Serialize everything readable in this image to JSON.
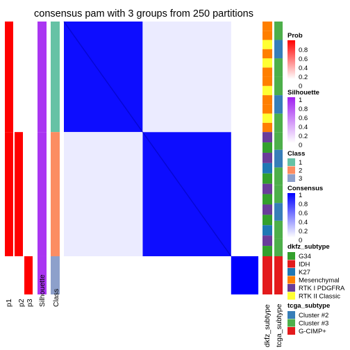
{
  "chart_data": {
    "type": "heatmap",
    "title": "consensus pam with 3 groups from 250 partitions",
    "column_labels": [
      "p1",
      "p2",
      "p3",
      "Silhouette",
      "Class"
    ],
    "annotation_labels": [
      "dkfz_subtype",
      "tcga_subtype"
    ],
    "groups": [
      {
        "class": "1",
        "n_fraction": 0.405,
        "p1": 1.0,
        "p2": 0.0,
        "p3": 0.0,
        "silhouette": 0.9
      },
      {
        "class": "2",
        "n_fraction": 0.455,
        "p1": 1.0,
        "p2": 1.0,
        "p3": 0.0,
        "silhouette": 0.9
      },
      {
        "class": "3",
        "n_fraction": 0.14,
        "p1": 0.0,
        "p2": 0.0,
        "p3": 1.0,
        "silhouette": 0.9
      }
    ],
    "consensus_blocks": [
      {
        "rows": [
          0,
          0.405
        ],
        "cols": [
          0,
          0.405
        ],
        "value": 0.95
      },
      {
        "rows": [
          0.405,
          0.86
        ],
        "cols": [
          0.405,
          0.86
        ],
        "value": 0.95
      },
      {
        "rows": [
          0.86,
          1.0
        ],
        "cols": [
          0.86,
          1.0
        ],
        "value": 1.0
      },
      {
        "rows": [
          0,
          0.405
        ],
        "cols": [
          0.405,
          0.86
        ],
        "value": 0.08
      },
      {
        "rows": [
          0.405,
          0.86
        ],
        "cols": [
          0,
          0.405
        ],
        "value": 0.08
      }
    ],
    "legends": {
      "prob": {
        "title": "Prob",
        "ticks": [
          "0.8",
          "0.6",
          "0.4",
          "0.2",
          "0"
        ]
      },
      "silhouette": {
        "title": "Silhouette",
        "ticks": [
          "1",
          "0.8",
          "0.6",
          "0.4",
          "0.2",
          "0"
        ]
      },
      "class": {
        "title": "Class",
        "items": [
          {
            "label": "1",
            "color": "#66c2a5"
          },
          {
            "label": "2",
            "color": "#fc8d62"
          },
          {
            "label": "3",
            "color": "#8da0cb"
          }
        ]
      },
      "consensus": {
        "title": "Consensus",
        "ticks": [
          "1",
          "0.8",
          "0.6",
          "0.4",
          "0.2",
          "0"
        ]
      },
      "dkfz_subtype": {
        "title": "dkfz_subtype",
        "items": [
          {
            "label": "G34",
            "color": "#33a02c"
          },
          {
            "label": "IDH",
            "color": "#e31a1c"
          },
          {
            "label": "K27",
            "color": "#1f78b4"
          },
          {
            "label": "Mesenchymal",
            "color": "#ff7f00"
          },
          {
            "label": "RTK I PDGFRA",
            "color": "#6a3d9a"
          },
          {
            "label": "RTK II Classic",
            "color": "#ffff33"
          }
        ]
      },
      "tcga_subtype": {
        "title": "tcga_subtype",
        "items": [
          {
            "label": "Cluster #2",
            "color": "#377eb8"
          },
          {
            "label": "Cluster #3",
            "color": "#4daf4a"
          },
          {
            "label": "G-CIMP+",
            "color": "#e41a1c"
          }
        ]
      }
    }
  }
}
